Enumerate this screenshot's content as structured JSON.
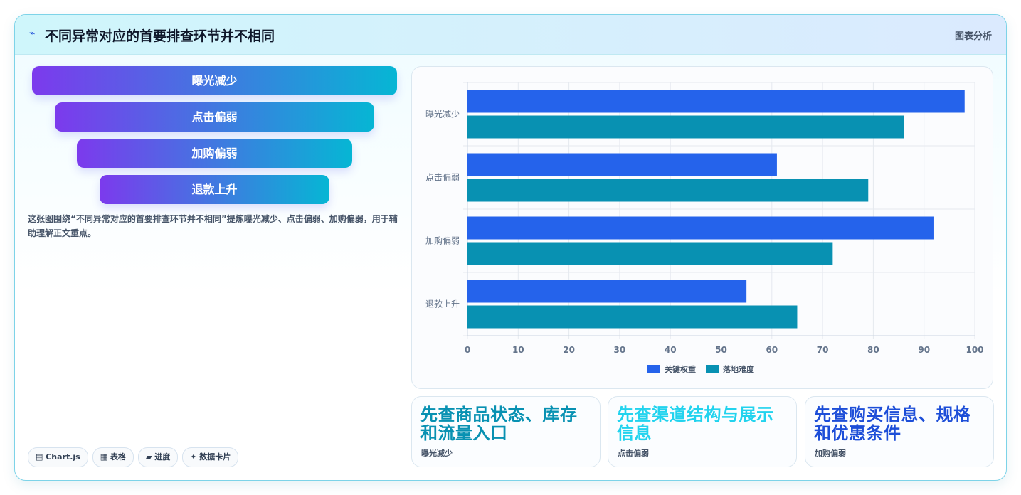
{
  "header": {
    "icon": "chart-line-icon",
    "title": "不同异常对应的首要排查环节并不相同",
    "tag": "图表分析"
  },
  "funnel": [
    "曝光减少",
    "点击偏弱",
    "加购偏弱",
    "退款上升"
  ],
  "description": "这张图围绕“不同异常对应的首要排查环节并不相同”提炼曝光减少、点击偏弱、加购偏弱，用于辅助理解正文重点。",
  "chips": [
    "▤ Chart.js",
    "▦ 表格",
    "▰ 进度",
    "✦ 数据卡片"
  ],
  "cards": [
    {
      "big": "先查商品状态、库存和流量入口",
      "small": "曝光减少",
      "color": "#0891b2"
    },
    {
      "big": "先查渠道结构与展示信息",
      "small": "点击偏弱",
      "color": "#22d3ee"
    },
    {
      "big": "先查购买信息、规格和优惠条件",
      "small": "加购偏弱",
      "color": "#1d4ed8"
    }
  ],
  "chart_data": {
    "type": "bar",
    "orientation": "horizontal",
    "categories": [
      "曝光减少",
      "点击偏弱",
      "加购偏弱",
      "退款上升"
    ],
    "series": [
      {
        "name": "关键权重",
        "values": [
          98,
          61,
          92,
          55
        ],
        "color": "#2563eb"
      },
      {
        "name": "落地难度",
        "values": [
          86,
          79,
          72,
          65
        ],
        "color": "#0891b2"
      }
    ],
    "xlim": [
      0,
      100
    ],
    "xticks": [
      0,
      10,
      20,
      30,
      40,
      50,
      60,
      70,
      80,
      90,
      100
    ],
    "grid": true,
    "legend": "bottom"
  }
}
